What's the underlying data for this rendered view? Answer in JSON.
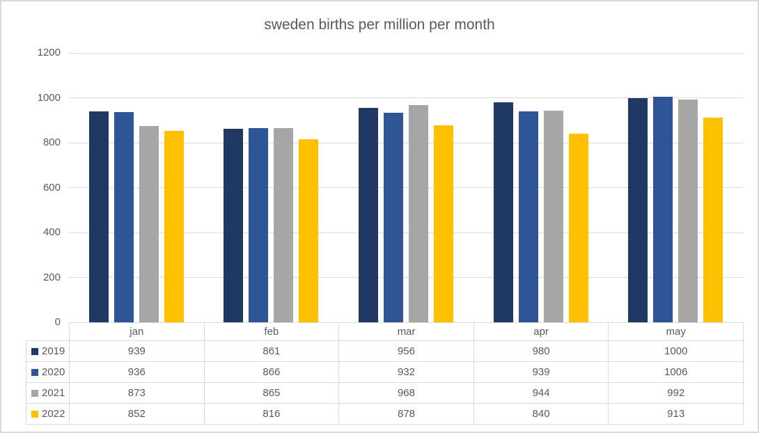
{
  "title": "sweden births per million per month",
  "chart_data": {
    "type": "bar",
    "title": "sweden births per million per month",
    "categories": [
      "jan",
      "feb",
      "mar",
      "apr",
      "may"
    ],
    "series": [
      {
        "name": "2019",
        "color": "#203864",
        "values": [
          939,
          861,
          956,
          980,
          1000
        ]
      },
      {
        "name": "2020",
        "color": "#2F5597",
        "values": [
          936,
          866,
          932,
          939,
          1006
        ]
      },
      {
        "name": "2021",
        "color": "#A6A6A6",
        "values": [
          873,
          865,
          968,
          944,
          992
        ]
      },
      {
        "name": "2022",
        "color": "#FFC000",
        "values": [
          852,
          816,
          878,
          840,
          913
        ]
      }
    ],
    "xlabel": "",
    "ylabel": "",
    "ylim": [
      0,
      1200
    ],
    "yticks": [
      0,
      200,
      400,
      600,
      800,
      1000,
      1200
    ],
    "grid": true,
    "legend_position": "table-left",
    "colors": {
      "gridline": "#D9D9D9",
      "table_border": "#D9D9D9",
      "text": "#595959",
      "frame_border": "#D9D9D9",
      "background": "#FFFFFF"
    }
  }
}
